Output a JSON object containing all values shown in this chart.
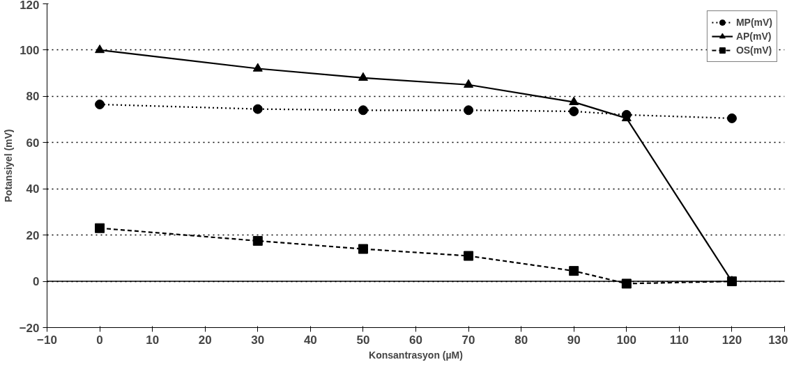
{
  "chart_data": {
    "type": "line",
    "xlabel": "Konsantrasyon (µM)",
    "ylabel": "Potansiyel (mV)",
    "x": [
      0,
      30,
      50,
      70,
      90,
      100,
      120
    ],
    "series": [
      {
        "name": "MP(mV)",
        "color": "#000000",
        "marker": "circle",
        "line_style": "dotted",
        "values": [
          76.5,
          74.5,
          74,
          74,
          73.5,
          72,
          70.5
        ]
      },
      {
        "name": "AP(mV)",
        "color": "#000000",
        "marker": "triangle",
        "line_style": "solid",
        "values": [
          100,
          92,
          88,
          85,
          77.5,
          70.5,
          0
        ]
      },
      {
        "name": "OS(mV)",
        "color": "#000000",
        "marker": "square",
        "line_style": "dashed",
        "values": [
          23,
          17.5,
          14,
          11,
          4.5,
          -1,
          0
        ]
      }
    ],
    "xlim": [
      -10,
      130
    ],
    "xticks": [
      -10,
      0,
      10,
      20,
      30,
      40,
      50,
      60,
      70,
      80,
      90,
      100,
      110,
      120,
      130
    ],
    "ylim": [
      -20,
      120
    ],
    "yticks": [
      -20,
      0,
      20,
      40,
      60,
      80,
      100,
      120
    ],
    "ref_lines": [
      {
        "axis": "y",
        "value": 0,
        "color": "#000000",
        "line_style": "solid"
      }
    ],
    "grid": "y",
    "legend": "top right"
  }
}
